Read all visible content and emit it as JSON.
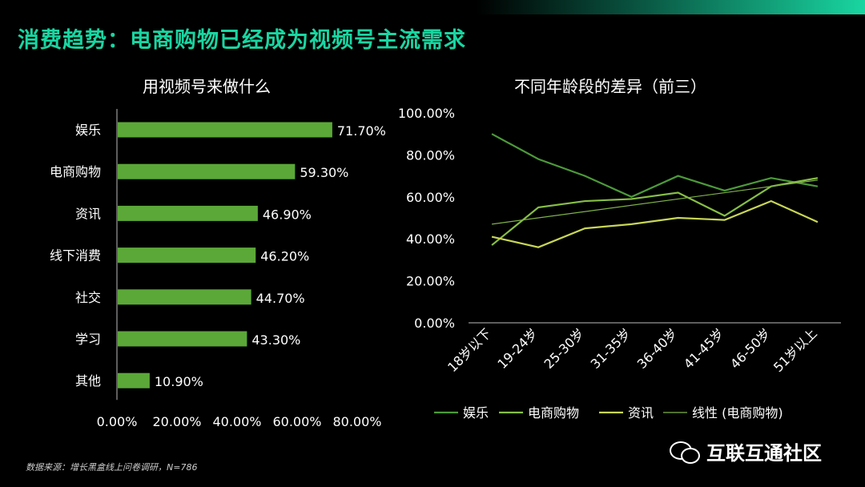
{
  "header": {
    "title": "消费趋势：电商购物已经成为视频号主流需求"
  },
  "footer": {
    "source": "数据来源：增长黑盒线上问卷调研，N=786",
    "watermark_text": "互联互通社区",
    "watermark_icon": "wechat-icon"
  },
  "colors": {
    "accent": "#19d6a1",
    "bar": "#5ba838",
    "entertainment": "#4c9a3a",
    "ecommerce": "#86bf45",
    "news": "#c8d655",
    "trend": "#7fb24a"
  },
  "chart_data": [
    {
      "type": "bar",
      "orientation": "horizontal",
      "title": "用视频号来做什么",
      "categories": [
        "娱乐",
        "电商购物",
        "资讯",
        "线下消费",
        "社交",
        "学习",
        "其他"
      ],
      "values": [
        71.7,
        59.3,
        46.9,
        46.2,
        44.7,
        43.3,
        10.9
      ],
      "value_labels": [
        "71.70%",
        "59.30%",
        "46.90%",
        "46.20%",
        "44.70%",
        "43.30%",
        "10.90%"
      ],
      "xlim": [
        0,
        80
      ],
      "xticks": [
        "0.00%",
        "20.00%",
        "40.00%",
        "60.00%",
        "80.00%"
      ],
      "grid": false
    },
    {
      "type": "line",
      "title": "不同年龄段的差异（前三）",
      "categories": [
        "18岁以下",
        "19-24岁",
        "25-30岁",
        "31-35岁",
        "36-40岁",
        "41-45岁",
        "46-50岁",
        "51岁以上"
      ],
      "series": [
        {
          "name": "娱乐",
          "values": [
            90,
            78,
            70,
            60,
            70,
            63,
            69,
            65
          ]
        },
        {
          "name": "电商购物",
          "values": [
            37,
            55,
            58,
            59,
            62,
            51,
            65,
            69
          ]
        },
        {
          "name": "资讯",
          "values": [
            41,
            36,
            45,
            47,
            50,
            49,
            58,
            48
          ]
        },
        {
          "name": "线性 (电商购物)",
          "values": [
            47,
            50,
            53,
            56,
            59,
            62,
            65,
            68
          ],
          "trendline": true
        }
      ],
      "ylim": [
        0,
        100
      ],
      "yticks": [
        "0.00%",
        "20.00%",
        "40.00%",
        "60.00%",
        "80.00%",
        "100.00%"
      ],
      "legend": "bottom",
      "grid": false
    }
  ]
}
